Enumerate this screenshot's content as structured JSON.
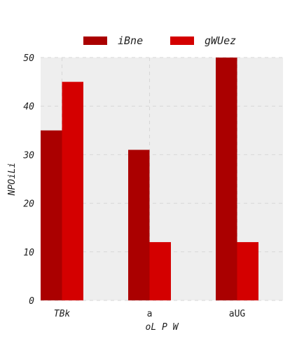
{
  "chart_data": {
    "type": "bar",
    "categories": [
      "TBk",
      "a",
      "aUG"
    ],
    "series": [
      {
        "name": "iBne",
        "values": [
          35,
          31,
          50
        ],
        "color": "#aa0000"
      },
      {
        "name": "gWUez",
        "values": [
          45,
          12,
          12
        ],
        "color": "#d40000"
      }
    ],
    "xlabel": "oL P W",
    "ylabel": "NPOiLi",
    "ylim": [
      0,
      50
    ],
    "yticks": [
      0,
      10,
      20,
      30,
      40,
      50
    ],
    "grid": true,
    "legend_position": "top-center",
    "background": "#eeeeee"
  }
}
